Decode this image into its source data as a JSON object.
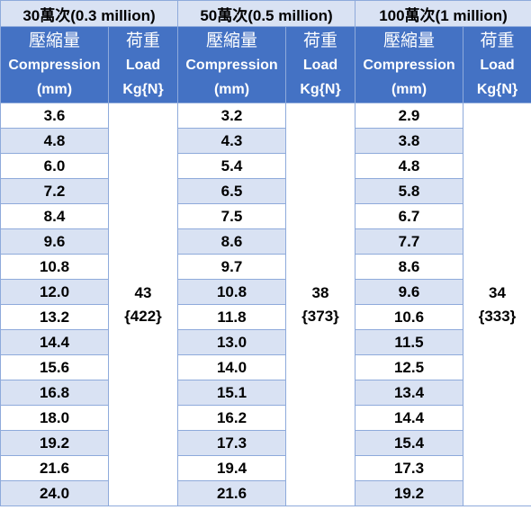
{
  "groups": [
    {
      "title": "30萬次(0.3 million)",
      "compression_header": [
        "壓縮量",
        "Compression",
        "(mm)"
      ],
      "load_header": [
        "荷重",
        "Load",
        "Kg{N}"
      ],
      "load_value": [
        "43",
        "{422}"
      ],
      "compressions": [
        "3.6",
        "4.8",
        "6.0",
        "7.2",
        "8.4",
        "9.6",
        "10.8",
        "12.0",
        "13.2",
        "14.4",
        "15.6",
        "16.8",
        "18.0",
        "19.2",
        "21.6",
        "24.0"
      ]
    },
    {
      "title": "50萬次(0.5 million)",
      "compression_header": [
        "壓縮量",
        "Compression",
        "(mm)"
      ],
      "load_header": [
        "荷重",
        "Load",
        "Kg{N}"
      ],
      "load_value": [
        "38",
        "{373}"
      ],
      "compressions": [
        "3.2",
        "4.3",
        "5.4",
        "6.5",
        "7.5",
        "8.6",
        "9.7",
        "10.8",
        "11.8",
        "13.0",
        "14.0",
        "15.1",
        "16.2",
        "17.3",
        "19.4",
        "21.6"
      ]
    },
    {
      "title": "100萬次(1 million)",
      "compression_header": [
        "壓縮量",
        "Compression",
        "(mm)"
      ],
      "load_header": [
        "荷重",
        "Load",
        "Kg{N}"
      ],
      "load_value": [
        "34",
        "{333}"
      ],
      "compressions": [
        "2.9",
        "3.8",
        "4.8",
        "5.8",
        "6.7",
        "7.7",
        "8.6",
        "9.6",
        "10.6",
        "11.5",
        "12.5",
        "13.4",
        "14.4",
        "15.4",
        "17.3",
        "19.2"
      ]
    }
  ]
}
